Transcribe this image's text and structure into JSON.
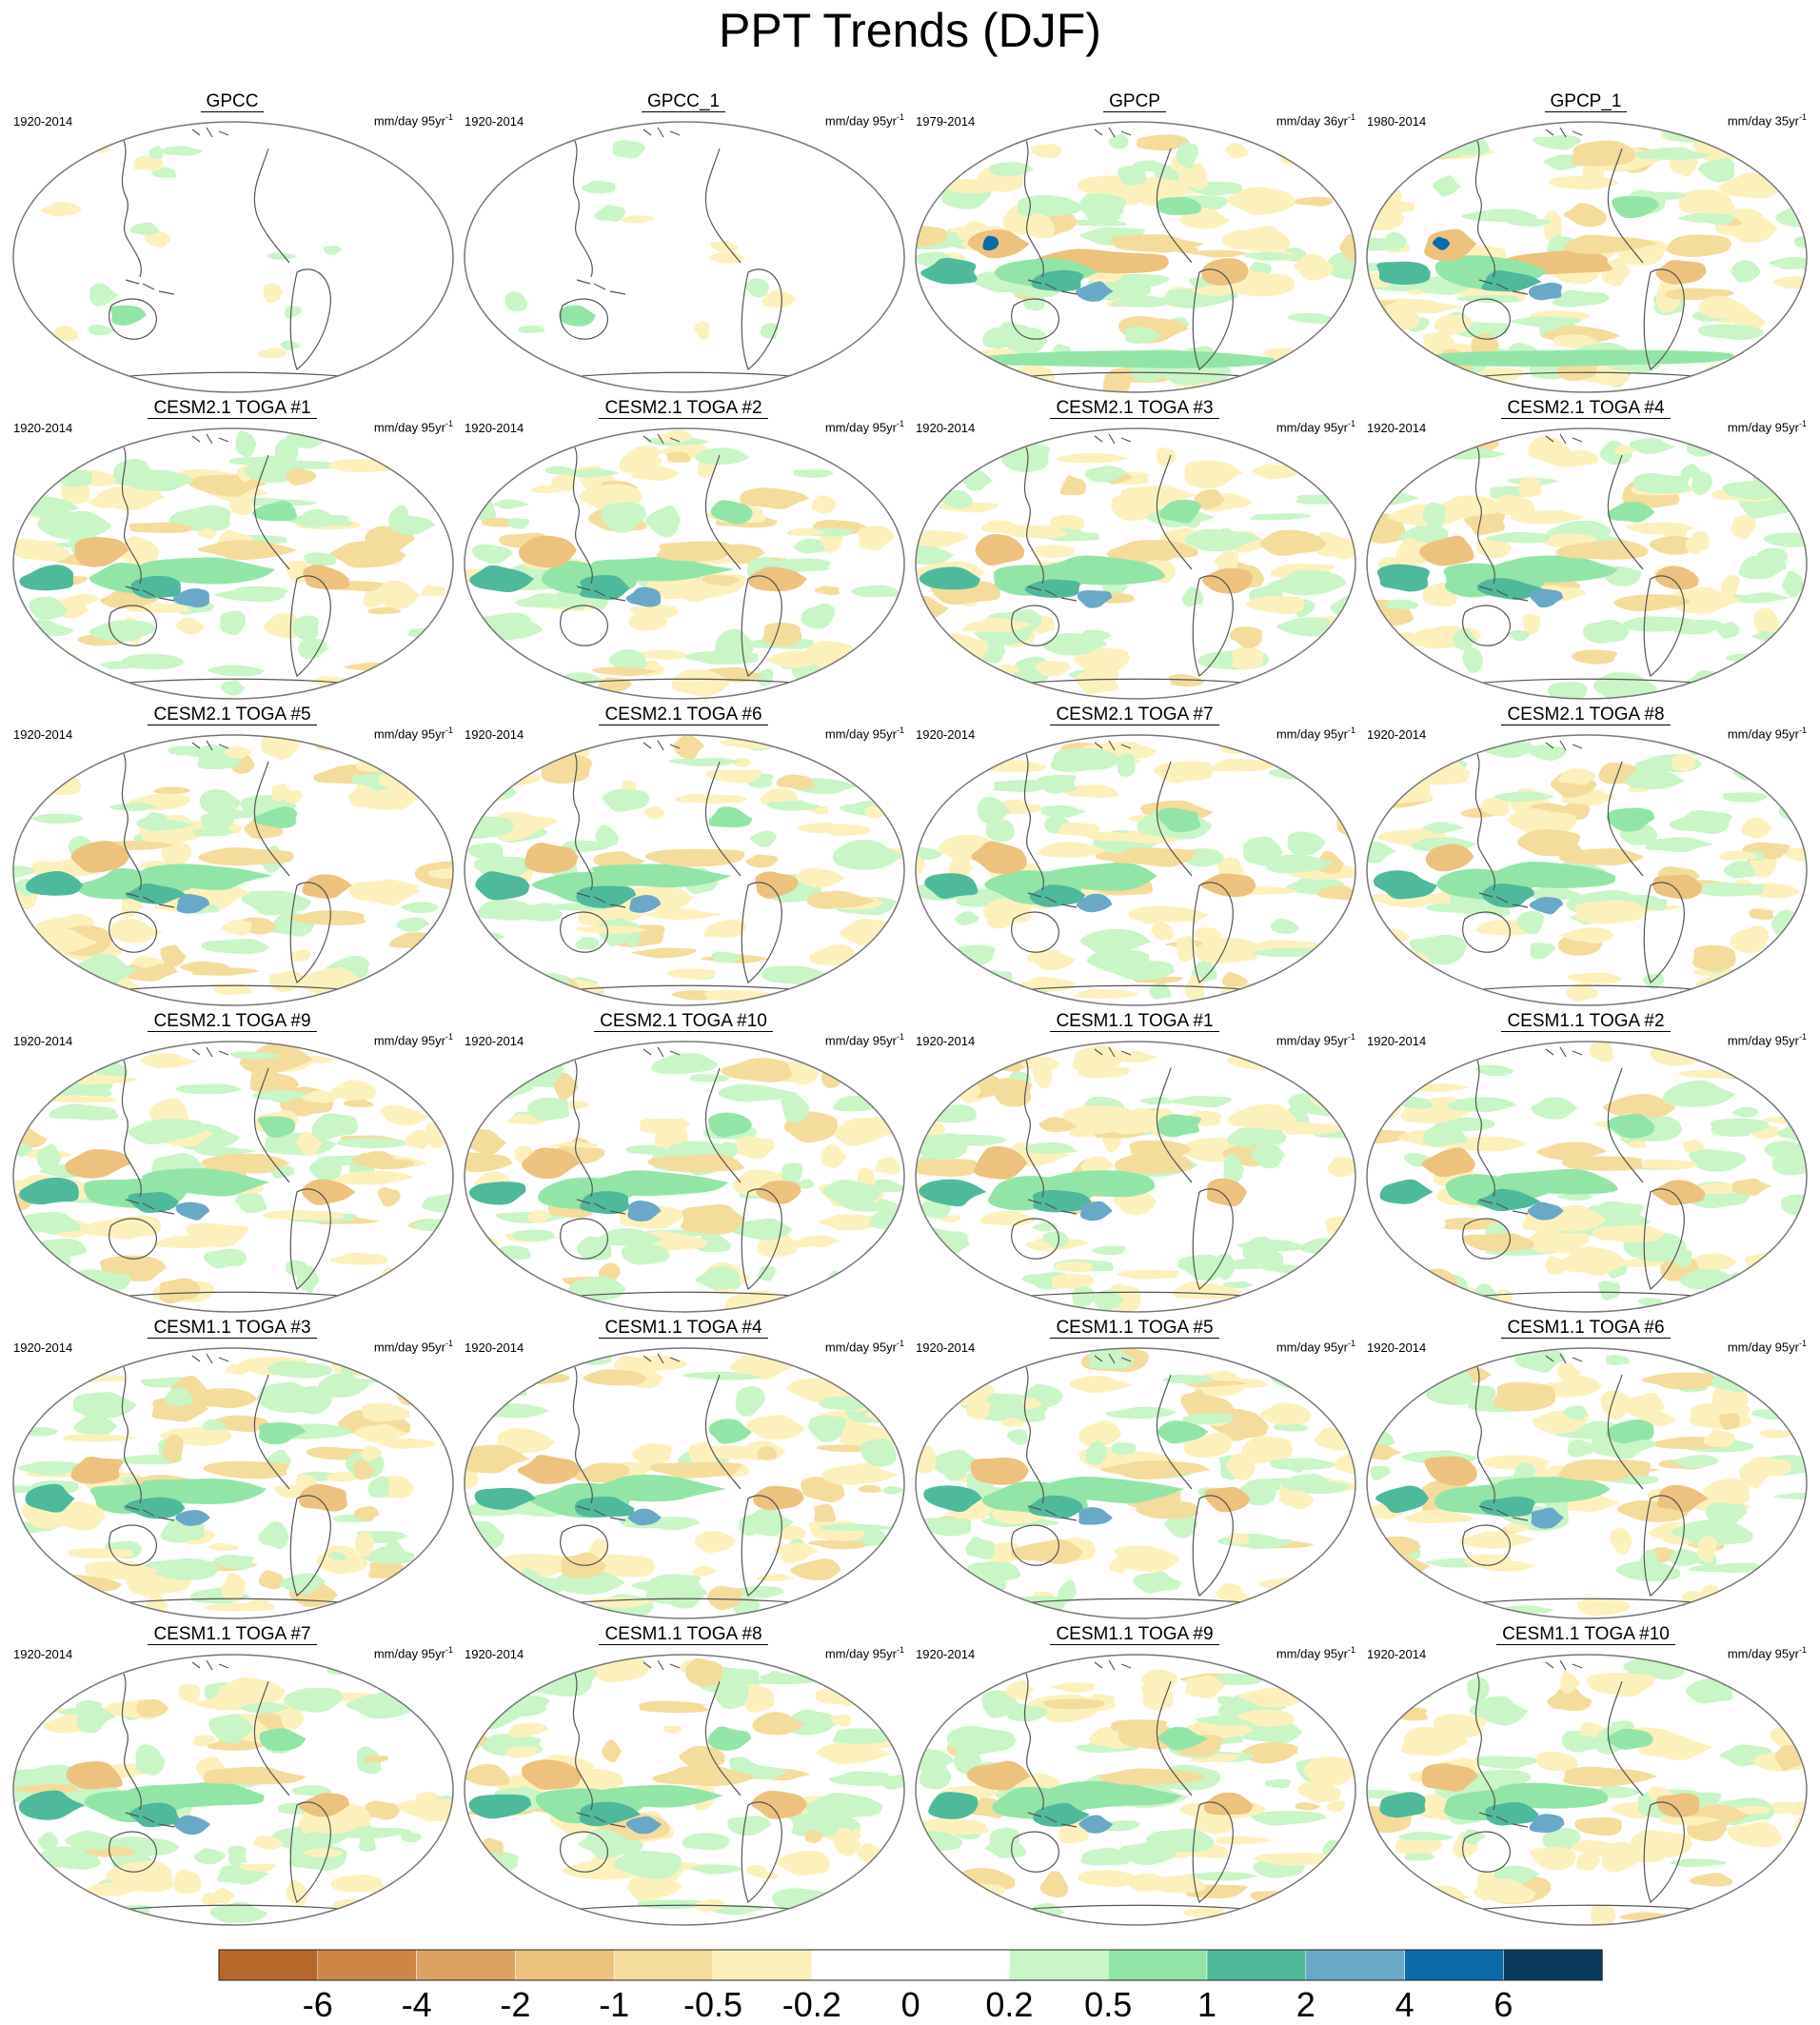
{
  "title": "PPT Trends (DJF)",
  "panels": [
    {
      "name": "GPCC",
      "period": "1920-2014",
      "units": "mm/day 95yr",
      "units_sup": "-1",
      "pattern": "gpcc"
    },
    {
      "name": "GPCC_1",
      "period": "1920-2014",
      "units": "mm/day 95yr",
      "units_sup": "-1",
      "pattern": "gpcc"
    },
    {
      "name": "GPCP",
      "period": "1979-2014",
      "units": "mm/day 36yr",
      "units_sup": "-1",
      "pattern": "gpcp"
    },
    {
      "name": "GPCP_1",
      "period": "1980-2014",
      "units": "mm/day 35yr",
      "units_sup": "-1",
      "pattern": "gpcp"
    },
    {
      "name": "CESM2.1 TOGA #1",
      "period": "1920-2014",
      "units": "mm/day 95yr",
      "units_sup": "-1",
      "pattern": "model"
    },
    {
      "name": "CESM2.1 TOGA #2",
      "period": "1920-2014",
      "units": "mm/day 95yr",
      "units_sup": "-1",
      "pattern": "model"
    },
    {
      "name": "CESM2.1 TOGA #3",
      "period": "1920-2014",
      "units": "mm/day 95yr",
      "units_sup": "-1",
      "pattern": "model"
    },
    {
      "name": "CESM2.1 TOGA #4",
      "period": "1920-2014",
      "units": "mm/day 95yr",
      "units_sup": "-1",
      "pattern": "model"
    },
    {
      "name": "CESM2.1 TOGA #5",
      "period": "1920-2014",
      "units": "mm/day 95yr",
      "units_sup": "-1",
      "pattern": "model"
    },
    {
      "name": "CESM2.1 TOGA #6",
      "period": "1920-2014",
      "units": "mm/day 95yr",
      "units_sup": "-1",
      "pattern": "model"
    },
    {
      "name": "CESM2.1 TOGA #7",
      "period": "1920-2014",
      "units": "mm/day 95yr",
      "units_sup": "-1",
      "pattern": "model"
    },
    {
      "name": "CESM2.1 TOGA #8",
      "period": "1920-2014",
      "units": "mm/day 95yr",
      "units_sup": "-1",
      "pattern": "model"
    },
    {
      "name": "CESM2.1 TOGA #9",
      "period": "1920-2014",
      "units": "mm/day 95yr",
      "units_sup": "-1",
      "pattern": "model"
    },
    {
      "name": "CESM2.1 TOGA #10",
      "period": "1920-2014",
      "units": "mm/day 95yr",
      "units_sup": "-1",
      "pattern": "model"
    },
    {
      "name": "CESM1.1 TOGA #1",
      "period": "1920-2014",
      "units": "mm/day 95yr",
      "units_sup": "-1",
      "pattern": "model"
    },
    {
      "name": "CESM1.1 TOGA #2",
      "period": "1920-2014",
      "units": "mm/day 95yr",
      "units_sup": "-1",
      "pattern": "model"
    },
    {
      "name": "CESM1.1 TOGA #3",
      "period": "1920-2014",
      "units": "mm/day 95yr",
      "units_sup": "-1",
      "pattern": "model"
    },
    {
      "name": "CESM1.1 TOGA #4",
      "period": "1920-2014",
      "units": "mm/day 95yr",
      "units_sup": "-1",
      "pattern": "model"
    },
    {
      "name": "CESM1.1 TOGA #5",
      "period": "1920-2014",
      "units": "mm/day 95yr",
      "units_sup": "-1",
      "pattern": "model"
    },
    {
      "name": "CESM1.1 TOGA #6",
      "period": "1920-2014",
      "units": "mm/day 95yr",
      "units_sup": "-1",
      "pattern": "model"
    },
    {
      "name": "CESM1.1 TOGA #7",
      "period": "1920-2014",
      "units": "mm/day 95yr",
      "units_sup": "-1",
      "pattern": "model"
    },
    {
      "name": "CESM1.1 TOGA #8",
      "period": "1920-2014",
      "units": "mm/day 95yr",
      "units_sup": "-1",
      "pattern": "model"
    },
    {
      "name": "CESM1.1 TOGA #9",
      "period": "1920-2014",
      "units": "mm/day 95yr",
      "units_sup": "-1",
      "pattern": "model"
    },
    {
      "name": "CESM1.1 TOGA #10",
      "period": "1920-2014",
      "units": "mm/day 95yr",
      "units_sup": "-1",
      "pattern": "model"
    }
  ],
  "colorbar": {
    "labels": [
      "-6",
      "-4",
      "-2",
      "-1",
      "-0.5",
      "-0.2",
      "0",
      "0.2",
      "0.5",
      "1",
      "2",
      "4",
      "6"
    ],
    "colors": [
      "#b5682a",
      "#cd8645",
      "#dca161",
      "#edc27e",
      "#f4dc9c",
      "#fcf1bd",
      "#ffffff",
      "#ffffff",
      "#c9f5c7",
      "#93e5a7",
      "#4fb99c",
      "#6aa8c8",
      "#0d6aa8",
      "#093a5e"
    ]
  }
}
